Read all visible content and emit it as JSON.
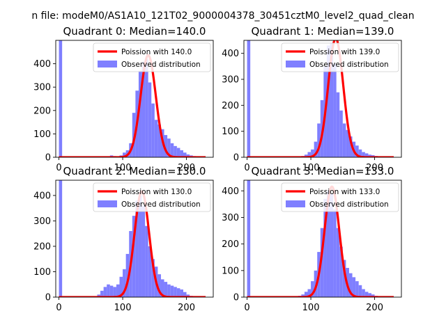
{
  "suptitle": "n file: modeM0/AS1A10_121T02_9000004378_30451cztM0_level2_quad_clean",
  "colors": {
    "bars": "#7f7fff",
    "poisson": "#ff0000",
    "median_line": "#7f7fff"
  },
  "chart_data": [
    {
      "type": "bar",
      "title": "Quadrant 0: Median=140.0",
      "median": 140,
      "xlim": [
        -5,
        242
      ],
      "ylim": [
        0,
        500
      ],
      "xticks": [
        0,
        100,
        200
      ],
      "yticks": [
        0,
        100,
        200,
        300,
        400
      ],
      "legend": [
        "Poission with 140.0",
        "Observed distribution"
      ],
      "legend_position": "top-right",
      "grid": false,
      "bin_edges": [
        0,
        5,
        10,
        15,
        20,
        25,
        30,
        35,
        40,
        45,
        50,
        55,
        60,
        65,
        70,
        75,
        80,
        85,
        90,
        95,
        100,
        105,
        110,
        115,
        120,
        125,
        130,
        135,
        140,
        145,
        150,
        155,
        160,
        165,
        170,
        175,
        180,
        185,
        190,
        195,
        200,
        205,
        210,
        215,
        220,
        225,
        230,
        235
      ],
      "counts": [
        500,
        0,
        0,
        0,
        0,
        0,
        0,
        0,
        0,
        0,
        0,
        0,
        0,
        0,
        0,
        0,
        8,
        5,
        3,
        8,
        20,
        30,
        60,
        190,
        285,
        370,
        410,
        420,
        320,
        230,
        160,
        140,
        120,
        95,
        80,
        60,
        48,
        40,
        30,
        20,
        12,
        8,
        5,
        0,
        0,
        0,
        0
      ]
    },
    {
      "type": "bar",
      "title": "Quadrant 1: Median=139.0",
      "median": 139,
      "xlim": [
        -5,
        242
      ],
      "ylim": [
        0,
        450
      ],
      "xticks": [
        0,
        100,
        200
      ],
      "yticks": [
        0,
        100,
        200,
        300,
        400
      ],
      "legend": [
        "Poission with 139.0",
        "Observed distribution"
      ],
      "legend_position": "top-right",
      "grid": false,
      "bin_edges": [
        0,
        5,
        10,
        15,
        20,
        25,
        30,
        35,
        40,
        45,
        50,
        55,
        60,
        65,
        70,
        75,
        80,
        85,
        90,
        95,
        100,
        105,
        110,
        115,
        120,
        125,
        130,
        135,
        140,
        145,
        150,
        155,
        160,
        165,
        170,
        175,
        180,
        185,
        190,
        195,
        200,
        205,
        210,
        215,
        220,
        225,
        230,
        235
      ],
      "counts": [
        450,
        0,
        0,
        0,
        0,
        0,
        0,
        0,
        0,
        0,
        0,
        0,
        0,
        0,
        0,
        0,
        0,
        5,
        10,
        20,
        30,
        60,
        130,
        220,
        350,
        430,
        440,
        360,
        250,
        180,
        130,
        105,
        80,
        60,
        45,
        30,
        20,
        15,
        10,
        8,
        5,
        0,
        0,
        0,
        0,
        0,
        0
      ]
    },
    {
      "type": "bar",
      "title": "Quadrant 2: Median=130.0",
      "median": 130,
      "xlim": [
        -5,
        242
      ],
      "ylim": [
        0,
        460
      ],
      "xticks": [
        0,
        100,
        200
      ],
      "yticks": [
        0,
        100,
        200,
        300,
        400
      ],
      "legend": [
        "Poission with 130.0",
        "Observed distribution"
      ],
      "legend_position": "top-right",
      "grid": false,
      "bin_edges": [
        0,
        5,
        10,
        15,
        20,
        25,
        30,
        35,
        40,
        45,
        50,
        55,
        60,
        65,
        70,
        75,
        80,
        85,
        90,
        95,
        100,
        105,
        110,
        115,
        120,
        125,
        130,
        135,
        140,
        145,
        150,
        155,
        160,
        165,
        170,
        175,
        180,
        185,
        190,
        195,
        200,
        205,
        210,
        215,
        220,
        225,
        230,
        235
      ],
      "counts": [
        460,
        0,
        0,
        0,
        0,
        0,
        0,
        0,
        0,
        0,
        0,
        0,
        10,
        25,
        40,
        50,
        45,
        40,
        50,
        80,
        110,
        170,
        260,
        320,
        380,
        400,
        360,
        280,
        200,
        150,
        120,
        90,
        70,
        60,
        50,
        45,
        40,
        35,
        30,
        20,
        10,
        5,
        0,
        0,
        0,
        0,
        0
      ]
    },
    {
      "type": "bar",
      "title": "Quadrant 3: Median=133.0",
      "median": 133,
      "xlim": [
        -5,
        242
      ],
      "ylim": [
        0,
        440
      ],
      "xticks": [
        0,
        100,
        200
      ],
      "yticks": [
        0,
        100,
        200,
        300,
        400
      ],
      "legend": [
        "Poission with 133.0",
        "Observed distribution"
      ],
      "legend_position": "top-right",
      "grid": false,
      "bin_edges": [
        0,
        5,
        10,
        15,
        20,
        25,
        30,
        35,
        40,
        45,
        50,
        55,
        60,
        65,
        70,
        75,
        80,
        85,
        90,
        95,
        100,
        105,
        110,
        115,
        120,
        125,
        130,
        135,
        140,
        145,
        150,
        155,
        160,
        165,
        170,
        175,
        180,
        185,
        190,
        195,
        200,
        205,
        210,
        215,
        220,
        225,
        230,
        235
      ],
      "counts": [
        440,
        0,
        0,
        0,
        0,
        0,
        0,
        0,
        0,
        0,
        0,
        0,
        0,
        0,
        0,
        0,
        5,
        10,
        20,
        30,
        60,
        100,
        170,
        260,
        370,
        400,
        390,
        330,
        260,
        190,
        140,
        110,
        90,
        75,
        60,
        45,
        30,
        20,
        15,
        10,
        5,
        0,
        0,
        0,
        0,
        0,
        0
      ]
    }
  ]
}
